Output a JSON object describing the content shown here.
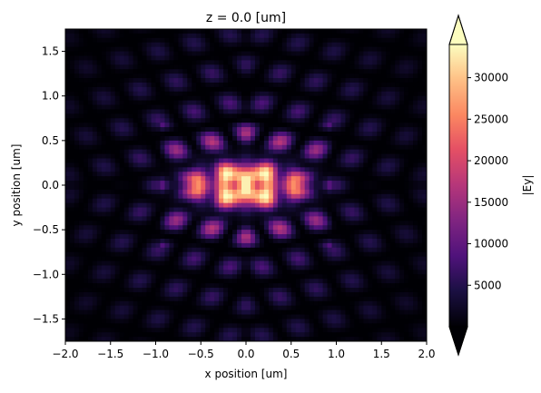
{
  "chart_data": {
    "type": "heatmap",
    "title": "z = 0.0 [um]",
    "xlabel": "x position [um]",
    "ylabel": "y position [um]",
    "xlim": [
      -2.0,
      2.0
    ],
    "ylim": [
      -1.75,
      1.75
    ],
    "x_ticks": [
      -2.0,
      -1.5,
      -1.0,
      -0.5,
      0.0,
      0.5,
      1.0,
      1.5,
      2.0
    ],
    "x_tick_labels": [
      "−2.0",
      "−1.5",
      "−1.0",
      "−0.5",
      "0.0",
      "0.5",
      "1.0",
      "1.5",
      "2.0"
    ],
    "y_ticks": [
      -1.5,
      -1.0,
      -0.5,
      0.0,
      0.5,
      1.0,
      1.5
    ],
    "y_tick_labels": [
      "−1.5",
      "−1.0",
      "−0.5",
      "0.0",
      "0.5",
      "1.0",
      "1.5"
    ],
    "colormap": "magma",
    "colorbar": {
      "label": "|Ey|",
      "range": [
        0,
        34000
      ],
      "ticks": [
        5000,
        10000,
        15000,
        20000,
        25000,
        30000
      ],
      "tick_labels": [
        "5000",
        "10000",
        "15000",
        "20000",
        "25000",
        "30000"
      ],
      "extend": "both"
    },
    "grid": false
  }
}
